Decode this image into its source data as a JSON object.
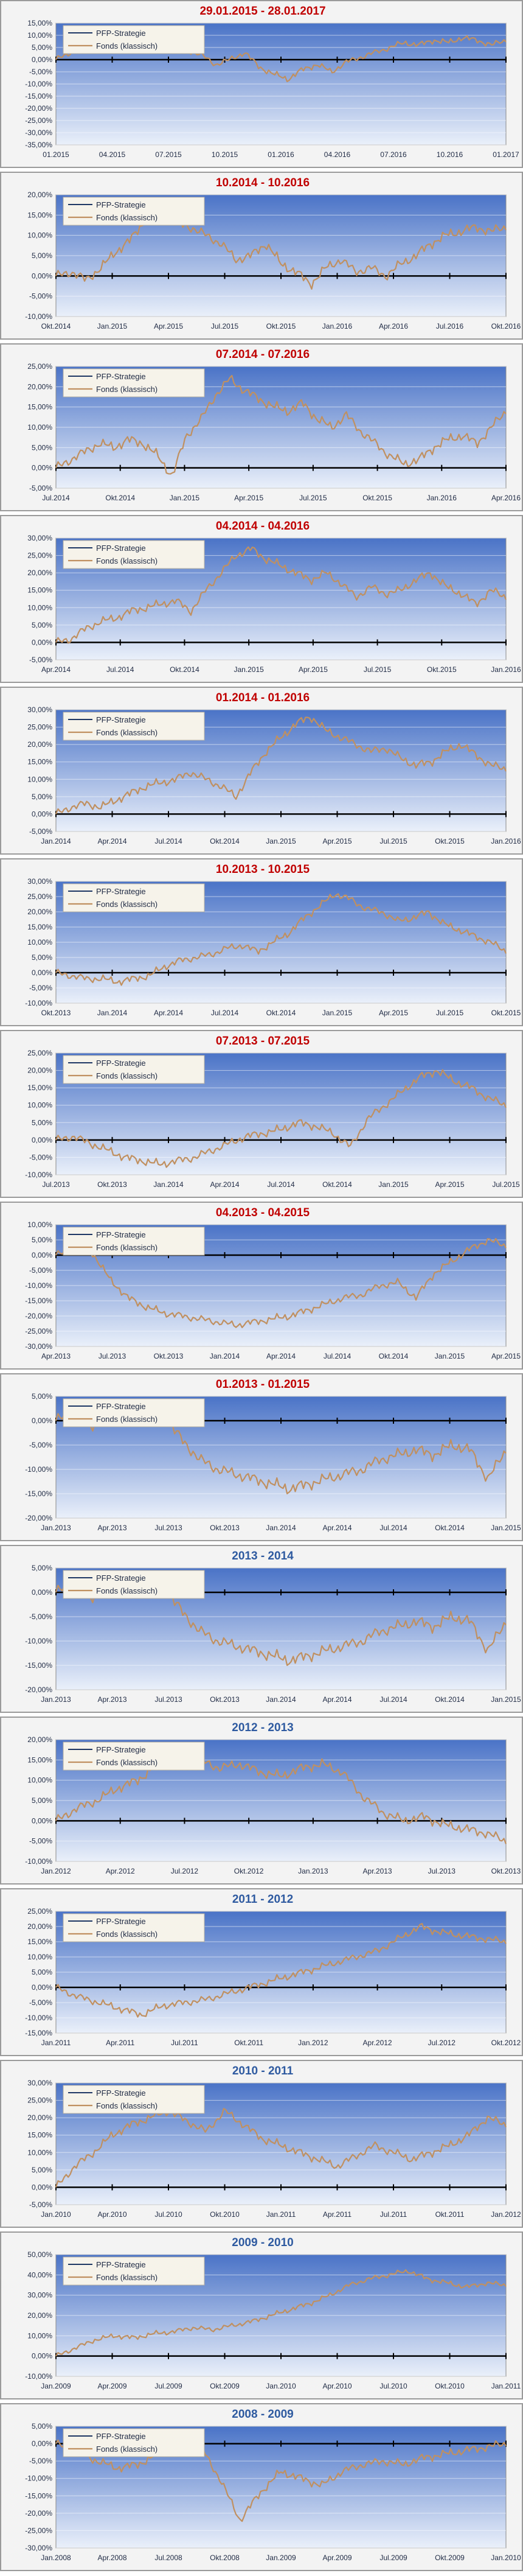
{
  "series_names": [
    "PFP-Strategie",
    "Fonds (klassisch)"
  ],
  "colors": {
    "pfp": "#1f3864",
    "fonds": "#c09060",
    "title_recent": "#c00000",
    "title_year": "#2e5aa0",
    "plot_top": "#4a73c7",
    "plot_bottom": "#eaf0fa"
  },
  "chart_data": [
    {
      "type": "line",
      "title": "29.01.2015 - 28.01.2017",
      "title_color": "red",
      "yticks": [
        "15,00%",
        "10,00%",
        "5,00%",
        "0,00%",
        "-5,00%",
        "-10,00%",
        "-15,00%",
        "-20,00%",
        "-25,00%",
        "-30,00%",
        "-35,00%"
      ],
      "ylim": [
        -35,
        15
      ],
      "ytick_values": [
        15,
        10,
        5,
        0,
        -5,
        -10,
        -15,
        -20,
        -25,
        -30,
        -35
      ],
      "xticks": [
        "01.2015",
        "04.2015",
        "07.2015",
        "10.2015",
        "01.2016",
        "04.2016",
        "07.2016",
        "10.2016",
        "01.2017"
      ],
      "series": [
        {
          "name": "Fonds (klassisch)",
          "values": [
            0,
            3,
            5,
            8,
            10,
            6,
            4,
            8,
            7,
            4,
            2,
            -2,
            0,
            3,
            -3,
            -6,
            -8,
            -4,
            -2,
            -5,
            -1,
            1,
            3,
            5,
            7,
            6,
            8,
            7,
            9,
            8,
            6,
            8
          ]
        }
      ]
    },
    {
      "type": "line",
      "title": "10.2014 - 10.2016",
      "title_color": "red",
      "yticks": [
        "20,00%",
        "15,00%",
        "10,00%",
        "5,00%",
        "0,00%",
        "-5,00%",
        "-10,00%"
      ],
      "ylim": [
        -10,
        20
      ],
      "ytick_values": [
        20,
        15,
        10,
        5,
        0,
        -5,
        -10
      ],
      "xticks": [
        "Okt.2014",
        "Jan.2015",
        "Apr.2015",
        "Jul.2015",
        "Okt.2015",
        "Jan.2016",
        "Apr.2016",
        "Jul.2016",
        "Okt.2016"
      ],
      "series": [
        {
          "name": "Fonds (klassisch)",
          "values": [
            0,
            1,
            -1,
            2,
            6,
            9,
            14,
            16,
            13,
            12,
            10,
            8,
            4,
            5,
            8,
            3,
            1,
            -2,
            2,
            4,
            1,
            2,
            0,
            3,
            5,
            8,
            10,
            11,
            12,
            11,
            12
          ]
        }
      ]
    },
    {
      "type": "line",
      "title": "07.2014 - 07.2016",
      "title_color": "red",
      "yticks": [
        "25,00%",
        "20,00%",
        "15,00%",
        "10,00%",
        "5,00%",
        "0,00%",
        "-5,00%"
      ],
      "ylim": [
        -5,
        25
      ],
      "ytick_values": [
        25,
        20,
        15,
        10,
        5,
        0,
        -5
      ],
      "xticks": [
        "Jul.2014",
        "Okt.2014",
        "Jan.2015",
        "Apr.2015",
        "Jul.2015",
        "Okt.2015",
        "Jan.2016",
        "Apr.2016"
      ],
      "series": [
        {
          "name": "Fonds (klassisch)",
          "values": [
            0,
            2,
            4,
            6,
            5,
            7,
            6,
            3,
            -2,
            8,
            12,
            18,
            22,
            19,
            17,
            15,
            14,
            16,
            12,
            10,
            13,
            9,
            6,
            3,
            1,
            2,
            5,
            7,
            8,
            6,
            10,
            14
          ]
        }
      ]
    },
    {
      "type": "line",
      "title": "04.2014 - 04.2016",
      "title_color": "red",
      "yticks": [
        "30,00%",
        "25,00%",
        "20,00%",
        "15,00%",
        "10,00%",
        "5,00%",
        "0,00%",
        "-5,00%"
      ],
      "ylim": [
        -5,
        30
      ],
      "ytick_values": [
        30,
        25,
        20,
        15,
        10,
        5,
        0,
        -5
      ],
      "xticks": [
        "Apr.2014",
        "Jul.2014",
        "Okt.2014",
        "Jan.2015",
        "Apr.2015",
        "Jul.2015",
        "Okt.2015",
        "Jan.2016"
      ],
      "series": [
        {
          "name": "Fonds (klassisch)",
          "values": [
            0,
            1,
            4,
            6,
            7,
            9,
            10,
            11,
            12,
            9,
            15,
            20,
            25,
            27,
            24,
            22,
            20,
            18,
            20,
            17,
            13,
            16,
            14,
            15,
            18,
            20,
            16,
            14,
            11,
            15,
            13
          ]
        }
      ]
    },
    {
      "type": "line",
      "title": "01.2014 - 01.2016",
      "title_color": "red",
      "yticks": [
        "30,00%",
        "25,00%",
        "20,00%",
        "15,00%",
        "10,00%",
        "5,00%",
        "0,00%",
        "-5,00%"
      ],
      "ylim": [
        -5,
        30
      ],
      "ytick_values": [
        30,
        25,
        20,
        15,
        10,
        5,
        0,
        -5
      ],
      "xticks": [
        "Jan.2014",
        "Apr.2014",
        "Jul.2014",
        "Okt.2014",
        "Jan.2015",
        "Apr.2015",
        "Jul.2015",
        "Okt.2015",
        "Jan.2016"
      ],
      "series": [
        {
          "name": "Fonds (klassisch)",
          "values": [
            0,
            2,
            3,
            2,
            4,
            6,
            8,
            9,
            10,
            12,
            10,
            8,
            5,
            12,
            18,
            22,
            26,
            28,
            24,
            22,
            20,
            18,
            19,
            16,
            14,
            15,
            18,
            20,
            17,
            14,
            13
          ]
        }
      ]
    },
    {
      "type": "line",
      "title": "10.2013 - 10.2015",
      "title_color": "red",
      "yticks": [
        "30,00%",
        "25,00%",
        "20,00%",
        "15,00%",
        "10,00%",
        "5,00%",
        "0,00%",
        "-5,00%",
        "-10,00%"
      ],
      "ylim": [
        -10,
        30
      ],
      "ytick_values": [
        30,
        25,
        20,
        15,
        10,
        5,
        0,
        -5,
        -10
      ],
      "xticks": [
        "Okt.2013",
        "Jan.2014",
        "Apr.2014",
        "Jul.2014",
        "Okt.2014",
        "Jan.2015",
        "Apr.2015",
        "Jul.2015",
        "Okt.2015"
      ],
      "series": [
        {
          "name": "Fonds (klassisch)",
          "values": [
            0,
            -1,
            -2,
            -2,
            -3,
            -2,
            -1,
            2,
            4,
            5,
            6,
            8,
            9,
            7,
            10,
            13,
            18,
            22,
            26,
            24,
            21,
            20,
            17,
            18,
            20,
            16,
            14,
            12,
            10,
            7
          ]
        }
      ]
    },
    {
      "type": "line",
      "title": "07.2013 - 07.2015",
      "title_color": "red",
      "yticks": [
        "25,00%",
        "20,00%",
        "15,00%",
        "10,00%",
        "5,00%",
        "0,00%",
        "-5,00%",
        "-10,00%"
      ],
      "ylim": [
        -10,
        25
      ],
      "ytick_values": [
        25,
        20,
        15,
        10,
        5,
        0,
        -5,
        -10
      ],
      "xticks": [
        "Jul.2013",
        "Okt.2013",
        "Jan.2014",
        "Apr.2014",
        "Jul.2014",
        "Okt.2014",
        "Jan.2015",
        "Apr.2015",
        "Jul.2015"
      ],
      "series": [
        {
          "name": "Fonds (klassisch)",
          "values": [
            0,
            1,
            -1,
            -3,
            -5,
            -6,
            -7,
            -6,
            -5,
            -3,
            -1,
            1,
            2,
            3,
            5,
            4,
            2,
            -2,
            6,
            10,
            14,
            18,
            20,
            17,
            15,
            12,
            10
          ]
        }
      ]
    },
    {
      "type": "line",
      "title": "04.2013 - 04.2015",
      "title_color": "red",
      "yticks": [
        "10,00%",
        "5,00%",
        "0,00%",
        "-5,00%",
        "-10,00%",
        "-15,00%",
        "-20,00%",
        "-25,00%",
        "-30,00%"
      ],
      "ylim": [
        -30,
        10
      ],
      "ytick_values": [
        10,
        5,
        0,
        -5,
        -10,
        -15,
        -20,
        -25,
        -30
      ],
      "xticks": [
        "Apr.2013",
        "Jul.2013",
        "Okt.2013",
        "Jan.2014",
        "Apr.2014",
        "Jul.2014",
        "Okt.2014",
        "Jan.2015",
        "Apr.2015"
      ],
      "series": [
        {
          "name": "Fonds (klassisch)",
          "values": [
            0,
            2,
            1,
            -8,
            -14,
            -17,
            -19,
            -20,
            -21,
            -22,
            -23,
            -22,
            -21,
            -20,
            -18,
            -16,
            -14,
            -13,
            -10,
            -9,
            -14,
            -6,
            -2,
            2,
            5,
            3
          ]
        }
      ]
    },
    {
      "type": "line",
      "title": "01.2013 - 01.2015",
      "title_color": "red",
      "yticks": [
        "5,00%",
        "0,00%",
        "-5,00%",
        "-10,00%",
        "-15,00%",
        "-20,00%"
      ],
      "ylim": [
        -20,
        5
      ],
      "ytick_values": [
        5,
        0,
        -5,
        -10,
        -15,
        -20
      ],
      "xticks": [
        "Jan.2013",
        "Apr.2013",
        "Jul.2013",
        "Okt.2013",
        "Jan.2014",
        "Apr.2014",
        "Jul.2014",
        "Okt.2014",
        "Jan.2015"
      ],
      "series": [
        {
          "name": "Fonds (klassisch)",
          "values": [
            0,
            2,
            -1,
            1,
            0,
            2,
            1,
            -4,
            -8,
            -10,
            -11,
            -12,
            -13,
            -14,
            -13,
            -12,
            -11,
            -10,
            -8,
            -7,
            -6,
            -7,
            -5,
            -6,
            -12,
            -6
          ]
        }
      ]
    },
    {
      "type": "line",
      "title": "2013 - 2014",
      "title_color": "blue",
      "yticks": [
        "5,00%",
        "0,00%",
        "-5,00%",
        "-10,00%",
        "-15,00%",
        "-20,00%"
      ],
      "ylim": [
        -20,
        5
      ],
      "ytick_values": [
        5,
        0,
        -5,
        -10,
        -15,
        -20
      ],
      "xticks": [
        "Jan.2013",
        "Apr.2013",
        "Jul.2013",
        "Okt.2013",
        "Jan.2014",
        "Apr.2014",
        "Jul.2014",
        "Okt.2014",
        "Jan.2015"
      ],
      "series": [
        {
          "name": "Fonds (klassisch)",
          "values": [
            0,
            2,
            -1,
            1,
            0,
            2,
            1,
            -4,
            -8,
            -10,
            -11,
            -12,
            -13,
            -14,
            -13,
            -12,
            -11,
            -10,
            -8,
            -7,
            -6,
            -7,
            -5,
            -6,
            -12,
            -6
          ]
        }
      ]
    },
    {
      "type": "line",
      "title": "2012 - 2013",
      "title_color": "blue",
      "yticks": [
        "20,00%",
        "15,00%",
        "10,00%",
        "5,00%",
        "0,00%",
        "-5,00%",
        "-10,00%"
      ],
      "ylim": [
        -10,
        20
      ],
      "ytick_values": [
        20,
        15,
        10,
        5,
        0,
        -5,
        -10
      ],
      "xticks": [
        "Jan.2012",
        "Apr.2012",
        "Jul.2012",
        "Okt.2012",
        "Jan.2013",
        "Apr.2013",
        "Jul.2013",
        "Okt.2013"
      ],
      "series": [
        {
          "name": "Fonds (klassisch)",
          "values": [
            0,
            3,
            5,
            8,
            10,
            14,
            16,
            15,
            13,
            14,
            12,
            11,
            13,
            14,
            12,
            6,
            2,
            0,
            1,
            -1,
            -2,
            -3,
            -5
          ]
        }
      ]
    },
    {
      "type": "line",
      "title": "2011 - 2012",
      "title_color": "blue",
      "yticks": [
        "25,00%",
        "20,00%",
        "15,00%",
        "10,00%",
        "5,00%",
        "0,00%",
        "-5,00%",
        "-10,00%",
        "-15,00%"
      ],
      "ylim": [
        -15,
        25
      ],
      "ytick_values": [
        25,
        20,
        15,
        10,
        5,
        0,
        -5,
        -10,
        -15
      ],
      "xticks": [
        "Jan.2011",
        "Apr.2011",
        "Jul.2011",
        "Okt.2011",
        "Jan.2012",
        "Apr.2012",
        "Jul.2012",
        "Okt.2012"
      ],
      "series": [
        {
          "name": "Fonds (klassisch)",
          "values": [
            0,
            -3,
            -5,
            -7,
            -9,
            -6,
            -5,
            -4,
            -2,
            0,
            2,
            4,
            6,
            8,
            10,
            12,
            16,
            20,
            18,
            17,
            16,
            15
          ]
        }
      ]
    },
    {
      "type": "line",
      "title": "2010 - 2011",
      "title_color": "blue",
      "yticks": [
        "30,00%",
        "25,00%",
        "20,00%",
        "15,00%",
        "10,00%",
        "5,00%",
        "0,00%",
        "-5,00%"
      ],
      "ylim": [
        -5,
        30
      ],
      "ytick_values": [
        30,
        25,
        20,
        15,
        10,
        5,
        0,
        -5
      ],
      "xticks": [
        "Jan.2010",
        "Apr.2010",
        "Jul.2010",
        "Okt.2010",
        "Jan.2011",
        "Apr.2011",
        "Jul.2011",
        "Okt.2011",
        "Jan.2012"
      ],
      "series": [
        {
          "name": "Fonds (klassisch)",
          "values": [
            0,
            6,
            10,
            15,
            18,
            20,
            22,
            19,
            16,
            22,
            18,
            14,
            12,
            10,
            8,
            6,
            9,
            12,
            10,
            8,
            10,
            12,
            15,
            20,
            18
          ]
        }
      ]
    },
    {
      "type": "line",
      "title": "2009 - 2010",
      "title_color": "blue",
      "yticks": [
        "50,00%",
        "40,00%",
        "30,00%",
        "20,00%",
        "10,00%",
        "0,00%",
        "-10,00%"
      ],
      "ylim": [
        -10,
        50
      ],
      "ytick_values": [
        50,
        40,
        30,
        20,
        10,
        0,
        -10
      ],
      "xticks": [
        "Jan.2009",
        "Apr.2009",
        "Jul.2009",
        "Okt.2009",
        "Jan.2010",
        "Apr.2010",
        "Jul.2010",
        "Okt.2010",
        "Jan.2011"
      ],
      "series": [
        {
          "name": "Fonds (klassisch)",
          "values": [
            0,
            4,
            8,
            10,
            9,
            11,
            12,
            14,
            13,
            15,
            17,
            20,
            23,
            26,
            30,
            35,
            38,
            40,
            42,
            38,
            36,
            34,
            36,
            35
          ]
        }
      ]
    },
    {
      "type": "line",
      "title": "2008 - 2009",
      "title_color": "blue",
      "yticks": [
        "5,00%",
        "0,00%",
        "-5,00%",
        "-10,00%",
        "-15,00%",
        "-20,00%",
        "-25,00%",
        "-30,00%"
      ],
      "ylim": [
        -30,
        5
      ],
      "ytick_values": [
        5,
        0,
        -5,
        -10,
        -15,
        -20,
        -25,
        -30
      ],
      "xticks": [
        "Jan.2008",
        "Apr.2008",
        "Jul.2008",
        "Okt.2008",
        "Jan.2009",
        "Apr.2009",
        "Jul.2009",
        "Okt.2009",
        "Jan.2010"
      ],
      "series": [
        {
          "name": "Fonds (klassisch)",
          "values": [
            0,
            -2,
            -5,
            -7,
            -6,
            -3,
            -1,
            0,
            -10,
            -22,
            -14,
            -8,
            -10,
            -12,
            -8,
            -6,
            -5,
            -6,
            -4,
            -3,
            -2,
            -1,
            0
          ]
        }
      ]
    }
  ]
}
